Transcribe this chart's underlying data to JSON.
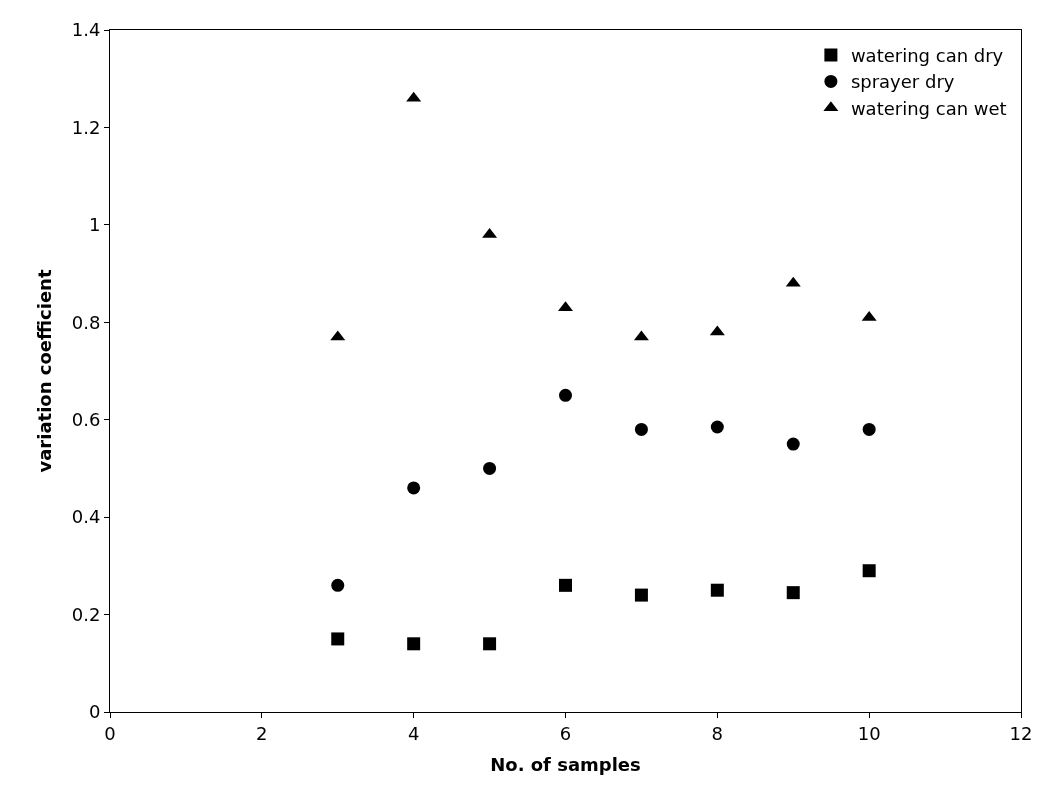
{
  "chart_data": {
    "type": "scatter",
    "xlabel": "No. of samples",
    "ylabel": "variation coefficient",
    "x": [
      3,
      4,
      5,
      6,
      7,
      8,
      9,
      10
    ],
    "series": [
      {
        "name": "watering can dry",
        "color": "#000000",
        "marker": "square",
        "values": [
          0.15,
          0.14,
          0.14,
          0.26,
          0.24,
          0.25,
          0.245,
          0.29
        ]
      },
      {
        "name": "sprayer dry",
        "color": "#000000",
        "marker": "circle",
        "values": [
          0.26,
          0.46,
          0.5,
          0.65,
          0.58,
          0.585,
          0.55,
          0.58
        ]
      },
      {
        "name": "watering can wet",
        "color": "#000000",
        "marker": "triangle",
        "values": [
          0.77,
          1.26,
          0.98,
          0.83,
          0.77,
          0.78,
          0.88,
          0.81
        ]
      }
    ],
    "xlim": [
      0,
      12
    ],
    "xticks": [
      0,
      2,
      4,
      6,
      8,
      10,
      12
    ],
    "ylim": [
      0,
      1.4
    ],
    "yticks": [
      0,
      {
        "value": 0.2,
        "label": "0.2"
      },
      {
        "value": 0.4,
        "label": "0.4"
      },
      {
        "value": 0.6,
        "label": "0.6"
      },
      {
        "value": 0.8,
        "label": "0.8"
      },
      1,
      {
        "value": 1.2,
        "label": "1.2"
      },
      {
        "value": 1.4,
        "label": "1.4"
      }
    ],
    "legend": "top right"
  }
}
